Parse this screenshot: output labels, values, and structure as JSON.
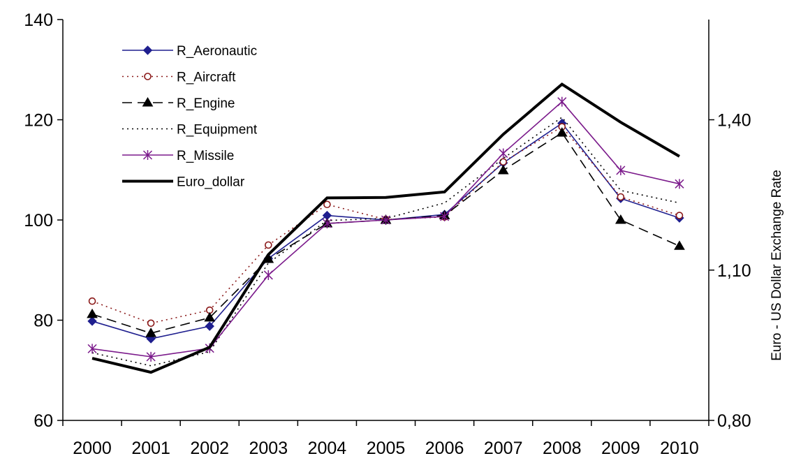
{
  "chart_data": {
    "type": "line",
    "title": "",
    "xlabel": "",
    "ylabel": "",
    "y2label": "Euro - US Dollar      Exchange Rate",
    "x": [
      "2000",
      "2001",
      "2002",
      "2003",
      "2004",
      "2005",
      "2006",
      "2007",
      "2008",
      "2009",
      "2010"
    ],
    "ylim": [
      60,
      140
    ],
    "yticks": [
      60,
      80,
      100,
      120,
      140
    ],
    "y2lim": [
      0.8,
      1.6
    ],
    "y2ticks": [
      0.8,
      1.1,
      1.4
    ],
    "y2tick_labels": [
      "0,80",
      "1,10",
      "1,40"
    ],
    "grid": false,
    "legend": "top-left",
    "series": [
      {
        "name": "R_Aeronautic",
        "axis": "left",
        "color": "#1f1f8f",
        "dash": "",
        "marker": "diamond",
        "markerFill": "#1f1f8f",
        "values": [
          79.8,
          76.3,
          78.8,
          92.3,
          100.9,
          100.0,
          101.1,
          111.4,
          119.3,
          104.3,
          100.4
        ]
      },
      {
        "name": "R_Aircraft",
        "axis": "left",
        "color": "#8b1a1a",
        "dash": "2 5",
        "marker": "circle",
        "markerFill": "#ffffff",
        "values": [
          83.8,
          79.4,
          82.0,
          95.0,
          103.1,
          100.1,
          100.6,
          111.6,
          118.6,
          104.6,
          100.9
        ]
      },
      {
        "name": "R_Engine",
        "axis": "left",
        "color": "#000000",
        "dash": "14 8",
        "marker": "triangle",
        "markerFill": "#000000",
        "values": [
          81.2,
          77.4,
          80.5,
          92.2,
          99.3,
          100.0,
          100.9,
          109.9,
          117.4,
          100.0,
          94.8
        ]
      },
      {
        "name": "R_Equipment",
        "axis": "left",
        "color": "#000000",
        "dash": "2 5",
        "marker": "none",
        "markerFill": "#000000",
        "values": [
          73.5,
          70.9,
          73.7,
          91.4,
          99.9,
          100.3,
          103.4,
          112.3,
          120.5,
          105.9,
          103.4
        ]
      },
      {
        "name": "R_Missile",
        "axis": "left",
        "color": "#7b1a8b",
        "dash": "",
        "marker": "star",
        "markerFill": "#7b1a8b",
        "values": [
          74.3,
          72.7,
          74.4,
          89.0,
          99.3,
          100.0,
          100.7,
          113.3,
          123.6,
          109.9,
          107.2
        ]
      },
      {
        "name": "Euro_dollar",
        "axis": "right",
        "color": "#000000",
        "dash": "",
        "marker": "none",
        "markerFill": "#000000",
        "width": 4,
        "values": [
          0.924,
          0.896,
          0.946,
          1.131,
          1.244,
          1.245,
          1.256,
          1.371,
          1.471,
          1.395,
          1.327
        ]
      }
    ]
  }
}
